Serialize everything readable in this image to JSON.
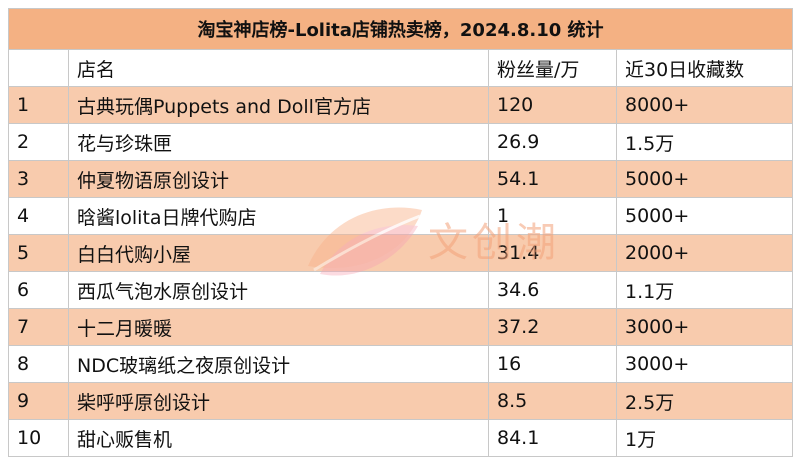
{
  "title": "淘宝神店榜-Lolita店铺热卖榜，2024.8.10 统计",
  "headers": [
    "",
    "店名",
    "粉丝量/万",
    "近30日收藏数"
  ],
  "rows": [
    {
      "rank": "1",
      "name": "古典玩偶Puppets and Doll官方店",
      "fans": "120",
      "favorites": "8000+"
    },
    {
      "rank": "2",
      "name": "花与珍珠匣",
      "fans": "26.9",
      "favorites": "1.5万"
    },
    {
      "rank": "3",
      "name": "仲夏物语原创设计",
      "fans": "54.1",
      "favorites": "5000+"
    },
    {
      "rank": "4",
      "name": "晗酱lolita日牌代购店",
      "fans": "1",
      "favorites": "5000+"
    },
    {
      "rank": "5",
      "name": "白白代购小屋",
      "fans": "31.4",
      "favorites": "2000+"
    },
    {
      "rank": "6",
      "name": "西瓜气泡水原创设计",
      "fans": "34.6",
      "favorites": "1.1万"
    },
    {
      "rank": "7",
      "name": "十二月暖暖",
      "fans": "37.2",
      "favorites": "3000+"
    },
    {
      "rank": "8",
      "name": "NDC玻璃纸之夜原创设计",
      "fans": "16",
      "favorites": "3000+"
    },
    {
      "rank": "9",
      "name": "柴呼呼原创设计",
      "fans": "8.5",
      "favorites": "2.5万"
    },
    {
      "rank": "10",
      "name": "甜心贩售机",
      "fans": "84.1",
      "favorites": "1万"
    }
  ],
  "watermark": {
    "text": "文创潮"
  },
  "colors": {
    "title_bg": "#f4b183",
    "odd_row_bg": "#f8cbad",
    "even_row_bg": "#ffffff",
    "border": "#c8c8c8",
    "watermark": "#f3a27a"
  }
}
